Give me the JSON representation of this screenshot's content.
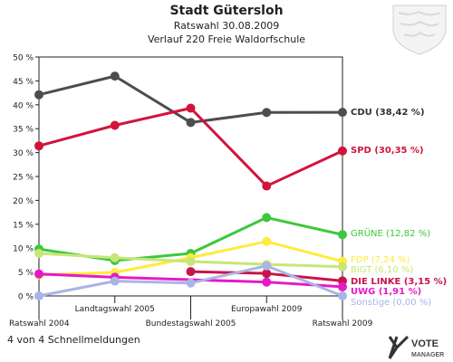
{
  "chart_data": {
    "type": "line",
    "title": "Stadt Gütersloh",
    "subtitle": "Ratswahl 30.08.2009",
    "subtitle2": "Verlauf 220 Freie Waldorfschule",
    "categories": [
      "Ratswahl 2004",
      "Landtagswahl 2005",
      "Bundestagswahl 2005",
      "Europawahl 2009",
      "Ratswahl 2009"
    ],
    "ylim": [
      0,
      50
    ],
    "yticks": [
      "0 %",
      "5 %",
      "10 %",
      "15 %",
      "20 %",
      "25 %",
      "30 %",
      "35 %",
      "40 %",
      "45 %",
      "50 %"
    ],
    "grid": false,
    "series": [
      {
        "name": "CDU (38,42 %)",
        "color": "#4d4d4d",
        "values": [
          42.1,
          46.0,
          36.3,
          38.4,
          38.42
        ]
      },
      {
        "name": "SPD (30,35 %)",
        "color": "#d2143c",
        "values": [
          31.4,
          35.7,
          39.3,
          23.0,
          30.35
        ]
      },
      {
        "name": "GRÜNE (12,82 %)",
        "color": "#3cc83c",
        "values": [
          9.8,
          7.4,
          8.9,
          16.4,
          12.82
        ]
      },
      {
        "name": "FDP (7,24 %)",
        "color": "#ffeb3b",
        "values": [
          4.4,
          4.9,
          8.0,
          11.4,
          7.24
        ]
      },
      {
        "name": "BIGT (6,10 %)",
        "color": "#c8e678",
        "values": [
          8.9,
          8.0,
          7.2,
          6.6,
          6.1
        ]
      },
      {
        "name": "DIE LINKE (3,15 %)",
        "color": "#c8144b",
        "values": [
          null,
          null,
          5.1,
          4.7,
          3.15
        ]
      },
      {
        "name": "UWG (1,91 %)",
        "color": "#e619c8",
        "values": [
          4.6,
          3.9,
          null,
          2.9,
          1.91
        ]
      },
      {
        "name": "Sonstige (0,00 %)",
        "color": "#aab4e6",
        "values": [
          0.0,
          3.1,
          2.7,
          6.3,
          0.0
        ]
      }
    ]
  },
  "footer": "4 von 4 Schnellmeldungen",
  "logo_text": "VOTE MANAGER"
}
